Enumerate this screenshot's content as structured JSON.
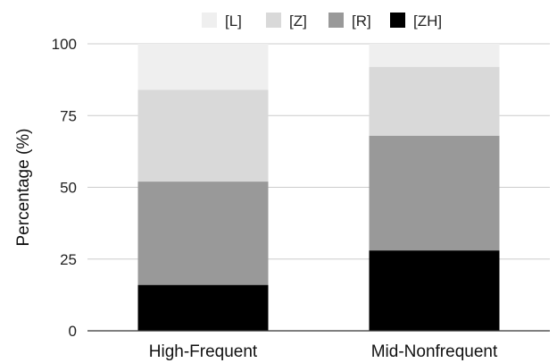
{
  "chart_data": {
    "type": "bar",
    "stacked": true,
    "title": "",
    "xlabel": "",
    "ylabel": "Percentage (%)",
    "ylim": [
      0,
      100
    ],
    "yticks": [
      0,
      25,
      50,
      75,
      100
    ],
    "grid": true,
    "legend_position": "top",
    "categories": [
      "High-Frequent",
      "Mid-Nonfrequent"
    ],
    "series": [
      {
        "name": "[ZH]",
        "color": "#000000",
        "values": [
          16,
          28
        ]
      },
      {
        "name": "[R]",
        "color": "#999999",
        "values": [
          36,
          40
        ]
      },
      {
        "name": "[Z]",
        "color": "#d9d9d9",
        "values": [
          32,
          24
        ]
      },
      {
        "name": "[L]",
        "color": "#efefef",
        "values": [
          16,
          8
        ]
      }
    ],
    "legend_order": [
      "[L]",
      "[Z]",
      "[R]",
      "[ZH]"
    ]
  }
}
